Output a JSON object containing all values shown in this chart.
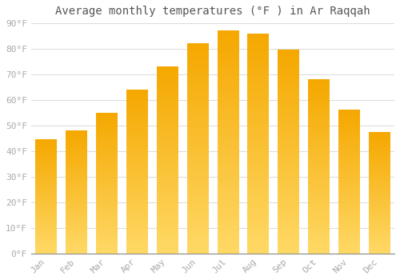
{
  "title": "Average monthly temperatures (°F ) in Ar Raqqah",
  "months": [
    "Jan",
    "Feb",
    "Mar",
    "Apr",
    "May",
    "Jun",
    "Jul",
    "Aug",
    "Sep",
    "Oct",
    "Nov",
    "Dec"
  ],
  "values": [
    44.5,
    48,
    55,
    64,
    73,
    82,
    87,
    86,
    79.5,
    68,
    56,
    47.5
  ],
  "bar_color_top": "#F5A800",
  "bar_color_bottom": "#FFD966",
  "background_color": "#FFFFFF",
  "grid_color": "#DDDDDD",
  "ylim": [
    0,
    90
  ],
  "yticks": [
    0,
    10,
    20,
    30,
    40,
    50,
    60,
    70,
    80,
    90
  ],
  "ytick_labels": [
    "0°F",
    "10°F",
    "20°F",
    "30°F",
    "40°F",
    "50°F",
    "60°F",
    "70°F",
    "80°F",
    "90°F"
  ],
  "title_fontsize": 10,
  "tick_fontsize": 8,
  "tick_font_color": "#AAAAAA",
  "font_family": "monospace",
  "bar_width": 0.7,
  "figsize": [
    5.0,
    3.5
  ],
  "dpi": 100
}
